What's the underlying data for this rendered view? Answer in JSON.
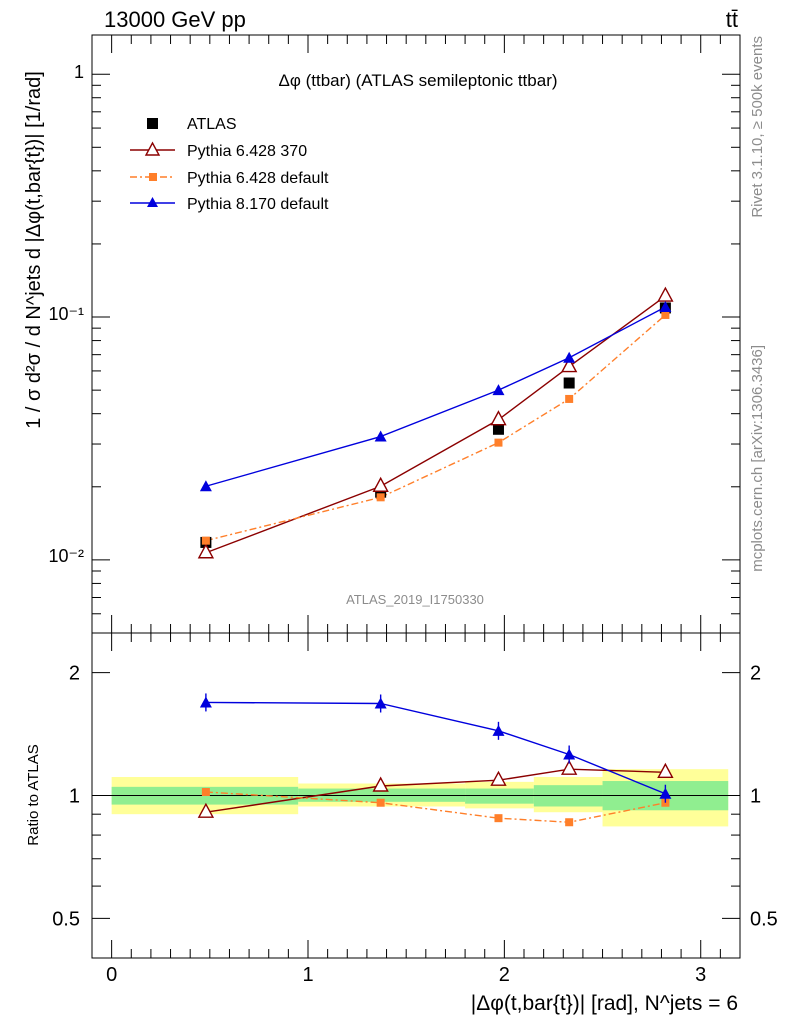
{
  "header": {
    "energy_label": "13000 GeV pp",
    "process_label": "tt̄"
  },
  "side_labels": {
    "rivet": "Rivet 3.1.10, ≥ 500k events",
    "mcplots": "mcplots.cern.ch [arXiv:1306.3436]"
  },
  "watermark": "ATLAS_2019_I1750330",
  "colors": {
    "atlas": "#000000",
    "py6_370": "#8b0000",
    "py6_default": "#ff7f2a",
    "py8_default": "#0000dd",
    "band_inner": "#90ee90",
    "band_outer": "#ffff99"
  },
  "chart_data": [
    {
      "type": "line",
      "title": "Δφ (ttbar) (ATLAS semileptonic ttbar)",
      "ylabel": "1 / σ d²σ / d N^jets d |Δφ(t,bar{t})| [1/rad]",
      "yscale": "log",
      "xlim": [
        -0.1,
        3.2
      ],
      "ylim": [
        0.005,
        1.45
      ],
      "y_tick_labels": [
        "10⁻²",
        "10⁻¹",
        "1"
      ],
      "legend_position": "top-left",
      "x": [
        0.48,
        1.37,
        1.97,
        2.33,
        2.82
      ],
      "series": [
        {
          "name": "ATLAS",
          "marker": "filled-square",
          "values": [
            0.0118,
            0.019,
            0.0345,
            0.0535,
            0.109
          ]
        },
        {
          "name": "Pythia 6.428 370",
          "marker": "open-triangle",
          "line": "solid",
          "values": [
            0.0107,
            0.0201,
            0.0378,
            0.0625,
            0.122
          ]
        },
        {
          "name": "Pythia 6.428 default",
          "marker": "filled-square-small",
          "line": "dash-dot",
          "values": [
            0.012,
            0.0181,
            0.0304,
            0.046,
            0.102
          ]
        },
        {
          "name": "Pythia 8.170 default",
          "marker": "filled-triangle",
          "line": "solid",
          "values": [
            0.0201,
            0.0322,
            0.05,
            0.068,
            0.11
          ]
        }
      ]
    },
    {
      "type": "line",
      "ylabel": "Ratio to ATLAS",
      "xlabel": "|Δφ(t,bar{t})| [rad], N^jets = 6",
      "yscale": "log",
      "xlim": [
        -0.1,
        3.2
      ],
      "ylim": [
        0.4,
        2.5
      ],
      "x_ticks": [
        0,
        1,
        2,
        3
      ],
      "y_ticks": [
        0.5,
        1,
        2
      ],
      "x": [
        0.48,
        1.37,
        1.97,
        2.33,
        2.82
      ],
      "bands": [
        {
          "x0": 0.0,
          "x1": 0.95,
          "inner": [
            0.95,
            1.05
          ],
          "outer": [
            0.9,
            1.11
          ]
        },
        {
          "x0": 0.95,
          "x1": 1.8,
          "inner": [
            0.965,
            1.04
          ],
          "outer": [
            0.94,
            1.07
          ]
        },
        {
          "x0": 1.8,
          "x1": 2.15,
          "inner": [
            0.955,
            1.04
          ],
          "outer": [
            0.93,
            1.08
          ]
        },
        {
          "x0": 2.15,
          "x1": 2.5,
          "inner": [
            0.94,
            1.06
          ],
          "outer": [
            0.91,
            1.11
          ]
        },
        {
          "x0": 2.5,
          "x1": 3.14,
          "inner": [
            0.92,
            1.085
          ],
          "outer": [
            0.84,
            1.16
          ]
        }
      ],
      "series": [
        {
          "name": "Pythia 6.428 370",
          "values": [
            0.91,
            1.055,
            1.09,
            1.16,
            1.14
          ]
        },
        {
          "name": "Pythia 6.428 default",
          "values": [
            1.02,
            0.96,
            0.88,
            0.86,
            0.96
          ]
        },
        {
          "name": "Pythia 8.170 default",
          "values": [
            1.69,
            1.68,
            1.44,
            1.26,
            1.01
          ]
        }
      ]
    }
  ]
}
